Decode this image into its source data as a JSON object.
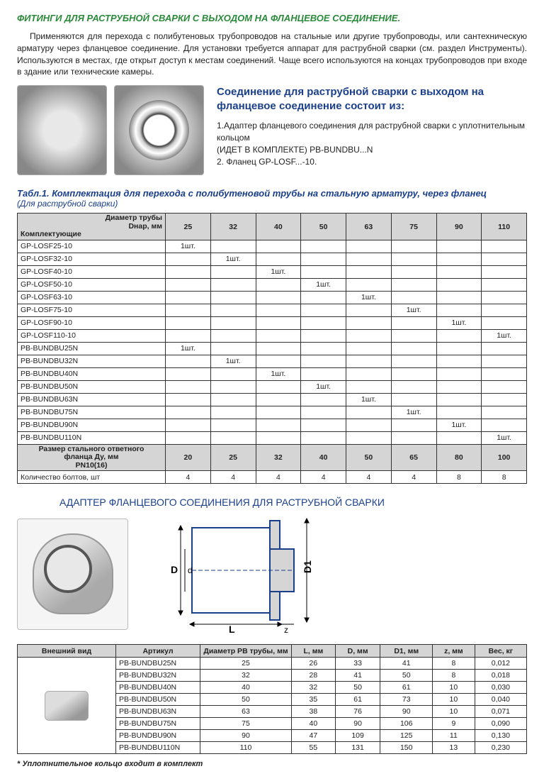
{
  "title": "ФИТИНГИ ДЛЯ РАСТРУБНОЙ СВАРКИ С ВЫХОДОМ НА ФЛАНЦЕВОЕ СОЕДИНЕНИЕ.",
  "paragraph": "Применяются для перехода с полибутеновых трубопроводов на стальные или другие трубопроводы, или сантехническую арматуру через фланцевое соединение. Для установки требуется аппарат для раструбной сварки (см. раздел Инструменты). Используются в местах, где открыт доступ к местам соединений. Чаще всего используются на концах трубопроводов при входе в здание или технические камеры.",
  "desc_title": "Соединение для раструбной сварки с выходом на фланцевое соединение состоит из:",
  "desc_1a": "1.Адаптер фланцевого соединения для раструбной сварки с уплотнительным кольцом",
  "desc_1b": "(ИДЕТ В КОМПЛЕКТЕ) PB-BUNDBU...N",
  "desc_2": "2. Фланец GP-LOSF...-10.",
  "t1_title": "Табл.1. Комплектация для перехода с полибутеновой трубы на стальную арматуру, через фланец",
  "t1_sub": "(Для раструбной сварки)",
  "t1_hdr_left_top": "Диаметр трубы",
  "t1_hdr_left_mid": "Dнар, мм",
  "t1_hdr_left_bot": "Комплектующие",
  "t1_cols": [
    "25",
    "32",
    "40",
    "50",
    "63",
    "75",
    "90",
    "110"
  ],
  "t1_rows_a": [
    [
      "GP-LOSF25-10",
      "1шт.",
      "",
      "",
      "",
      "",
      "",
      "",
      ""
    ],
    [
      "GP-LOSF32-10",
      "",
      "1шт.",
      "",
      "",
      "",
      "",
      "",
      ""
    ],
    [
      "GP-LOSF40-10",
      "",
      "",
      "1шт.",
      "",
      "",
      "",
      "",
      ""
    ],
    [
      "GP-LOSF50-10",
      "",
      "",
      "",
      "1шт.",
      "",
      "",
      "",
      ""
    ],
    [
      "GP-LOSF63-10",
      "",
      "",
      "",
      "",
      "1шт.",
      "",
      "",
      ""
    ],
    [
      "GP-LOSF75-10",
      "",
      "",
      "",
      "",
      "",
      "1шт.",
      "",
      ""
    ],
    [
      "GP-LOSF90-10",
      "",
      "",
      "",
      "",
      "",
      "",
      "1шт.",
      ""
    ],
    [
      "GP-LOSF110-10",
      "",
      "",
      "",
      "",
      "",
      "",
      "",
      "1шт."
    ]
  ],
  "t1_rows_b": [
    [
      "PB-BUNDBU25N",
      "1шт.",
      "",
      "",
      "",
      "",
      "",
      "",
      ""
    ],
    [
      "PB-BUNDBU32N",
      "",
      "1шт.",
      "",
      "",
      "",
      "",
      "",
      ""
    ],
    [
      "PB-BUNDBU40N",
      "",
      "",
      "1шт.",
      "",
      "",
      "",
      "",
      ""
    ],
    [
      "PB-BUNDBU50N",
      "",
      "",
      "",
      "1шт.",
      "",
      "",
      "",
      ""
    ],
    [
      "PB-BUNDBU63N",
      "",
      "",
      "",
      "",
      "1шт.",
      "",
      "",
      ""
    ],
    [
      "PB-BUNDBU75N",
      "",
      "",
      "",
      "",
      "",
      "1шт.",
      "",
      ""
    ],
    [
      "PB-BUNDBU90N",
      "",
      "",
      "",
      "",
      "",
      "",
      "1шт.",
      ""
    ],
    [
      "PB-BUNDBU110N",
      "",
      "",
      "",
      "",
      "",
      "",
      "",
      "1шт."
    ]
  ],
  "t1_flange_a": "Размер стального ответного",
  "t1_flange_b": "фланца Ду, мм",
  "t1_flange_c": "PN10(16)",
  "t1_flange_row": [
    "20",
    "25",
    "32",
    "40",
    "50",
    "65",
    "80",
    "100"
  ],
  "t1_bolts_label": "Количество болтов, шт",
  "t1_bolts_row": [
    "4",
    "4",
    "4",
    "4",
    "4",
    "4",
    "8",
    "8"
  ],
  "heading2": "АДАПТЕР ФЛАНЦЕВОГО СОЕДИНЕНИЯ ДЛЯ РАСТРУБНОЙ СВАРКИ",
  "diagram_labels": {
    "D": "D",
    "d": "d",
    "D1": "D1",
    "L": "L",
    "z": "z"
  },
  "t2_headers": [
    "Внешний вид",
    "Артикул",
    "Диаметр PB трубы, мм",
    "L, мм",
    "D, мм",
    "D1, мм",
    "z, мм",
    "Вес, кг"
  ],
  "t2_rows": [
    [
      "PB-BUNDBU25N",
      "25",
      "26",
      "33",
      "41",
      "8",
      "0,012"
    ],
    [
      "PB-BUNDBU32N",
      "32",
      "28",
      "41",
      "50",
      "8",
      "0,018"
    ],
    [
      "PB-BUNDBU40N",
      "40",
      "32",
      "50",
      "61",
      "10",
      "0,030"
    ],
    [
      "PB-BUNDBU50N",
      "50",
      "35",
      "61",
      "73",
      "10",
      "0,040"
    ],
    [
      "PB-BUNDBU63N",
      "63",
      "38",
      "76",
      "90",
      "10",
      "0,071"
    ],
    [
      "PB-BUNDBU75N",
      "75",
      "40",
      "90",
      "106",
      "9",
      "0,090"
    ],
    [
      "PB-BUNDBU90N",
      "90",
      "47",
      "109",
      "125",
      "11",
      "0,130"
    ],
    [
      "PB-BUNDBU110N",
      "110",
      "55",
      "131",
      "150",
      "13",
      "0,230"
    ]
  ],
  "footnote": "* Уплотнительное кольцо входит в комплект",
  "colors": {
    "accent_blue": "#1a3f8b",
    "accent_green": "#2a8a3a",
    "grey_head": "#d5d5d5"
  }
}
